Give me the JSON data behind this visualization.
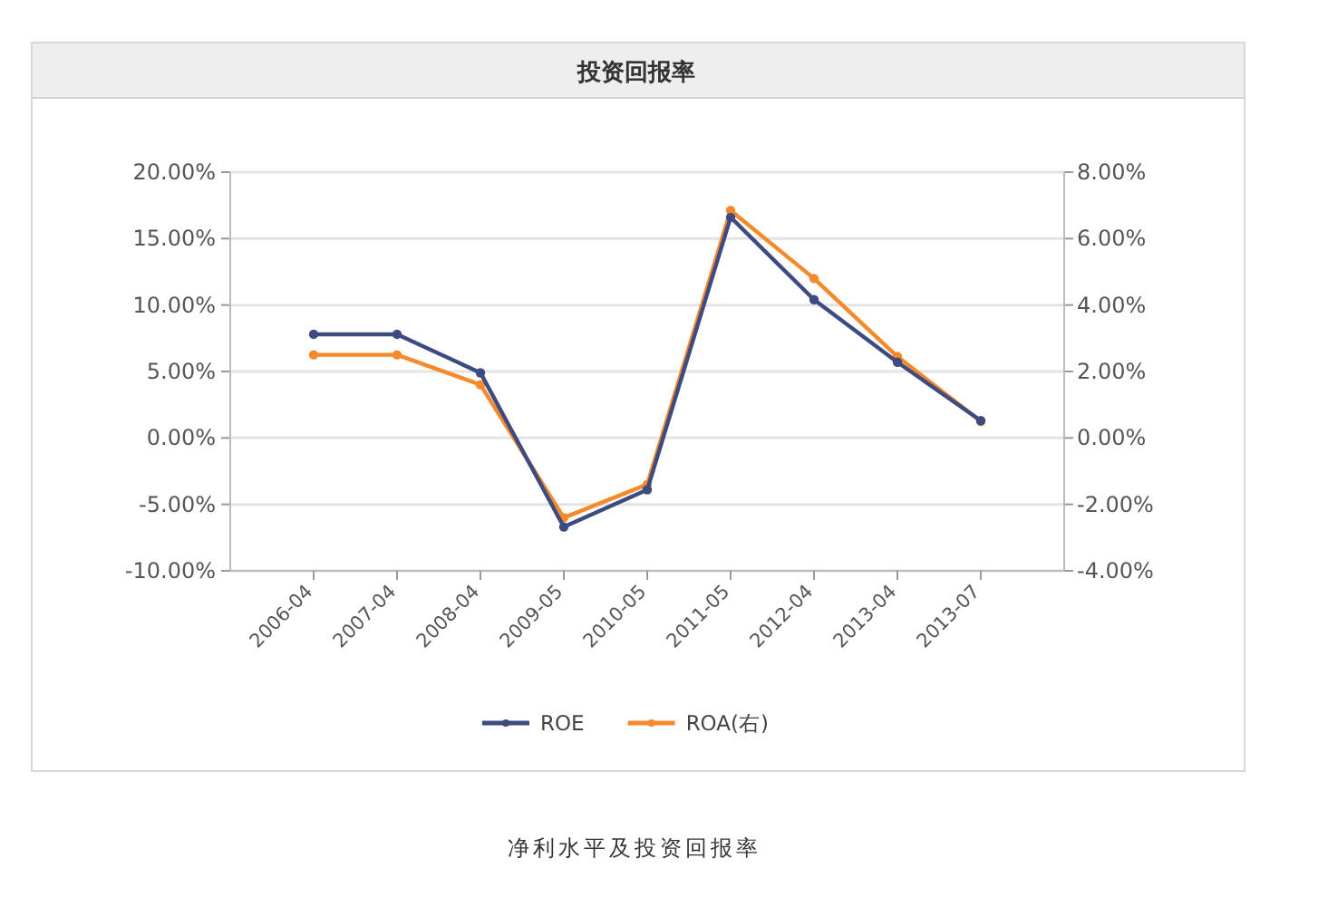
{
  "chart_data": {
    "type": "line",
    "title": "投资回报率",
    "categories": [
      "2006-04",
      "2007-04",
      "2008-04",
      "2009-05",
      "2010-05",
      "2011-05",
      "2012-04",
      "2013-04",
      "2013-07"
    ],
    "series": [
      {
        "name": "ROE",
        "color": "#3d4b80",
        "values": [
          7.8,
          7.8,
          4.9,
          -6.7,
          -3.9,
          16.6,
          10.4,
          5.7,
          1.3
        ]
      },
      {
        "name": "ROA(右)",
        "color": "#f58a2c",
        "axis": "y2",
        "values": [
          2.5,
          2.5,
          1.6,
          -2.4,
          -1.4,
          6.85,
          4.8,
          2.45,
          0.5
        ]
      }
    ],
    "ylim": [
      -10,
      20
    ],
    "yticks": [
      {
        "value": -10,
        "label": "-10.00%"
      },
      {
        "value": -5,
        "label": "-5.00%"
      },
      {
        "value": 0,
        "label": "0.00%"
      },
      {
        "value": 5,
        "label": "5.00%"
      },
      {
        "value": 10,
        "label": "10.00%"
      },
      {
        "value": 15,
        "label": "15.00%"
      },
      {
        "value": 20,
        "label": "20.00%"
      }
    ],
    "y2lim": [
      -4,
      8
    ],
    "y2ticks": [
      {
        "value": -4,
        "label": "-4.00%"
      },
      {
        "value": -2,
        "label": "-2.00%"
      },
      {
        "value": 0,
        "label": "0.00%"
      },
      {
        "value": 2,
        "label": "2.00%"
      },
      {
        "value": 4,
        "label": "4.00%"
      },
      {
        "value": 6,
        "label": "6.00%"
      },
      {
        "value": 8,
        "label": "8.00%"
      }
    ],
    "grid": "y",
    "legend": "bottom",
    "marker": "circle",
    "line_style": "solid",
    "annotations": [
      "净利水平及投资回报率"
    ]
  }
}
